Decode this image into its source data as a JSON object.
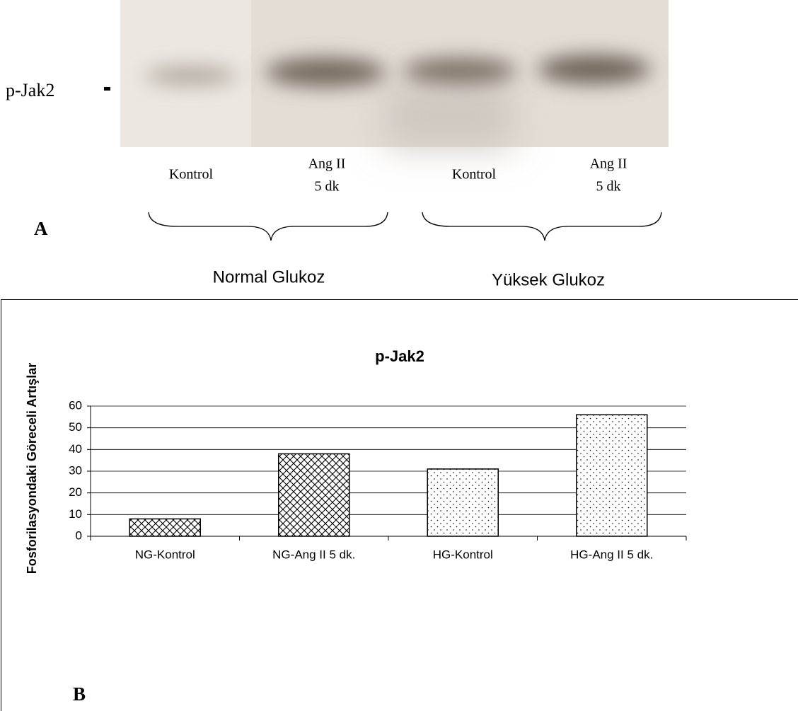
{
  "blot": {
    "row_label": "p-Jak2",
    "lanes": [
      [
        "Kontrol"
      ],
      [
        "Ang II",
        "5 dk"
      ],
      [
        "Kontrol"
      ],
      [
        "Ang II",
        "5 dk"
      ]
    ],
    "groups": [
      "Normal Glukoz",
      "Yüksek Glukoz"
    ],
    "panel_a": "A",
    "panel_b": "B"
  },
  "chart_data": {
    "type": "bar",
    "title": "p-Jak2",
    "y_label": "Fosforilasyondaki Göreceli Artışlar",
    "categories": [
      "NG-Kontrol",
      "NG-Ang II 5 dk.",
      "HG-Kontrol",
      "HG-Ang II 5 dk."
    ],
    "values": [
      8,
      38,
      31,
      56
    ],
    "patterns": [
      "crosshatch",
      "crosshatch",
      "dots",
      "dots"
    ],
    "ylim": [
      0,
      60
    ],
    "yticks": [
      0,
      10,
      20,
      30,
      40,
      50,
      60
    ],
    "grid": true
  }
}
